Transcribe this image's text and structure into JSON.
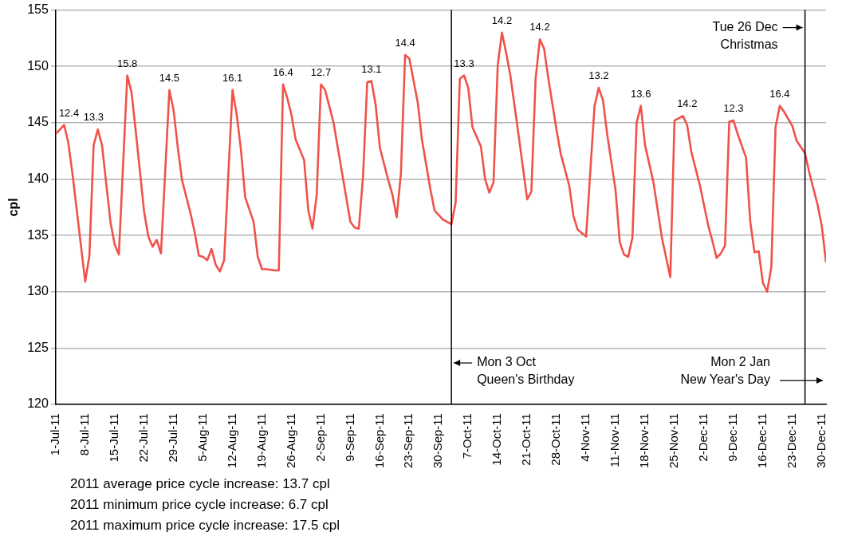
{
  "chart_data": {
    "type": "line",
    "ylabel": "cpl",
    "marker": "none",
    "line_style": "solid",
    "grid": "y",
    "legend": false,
    "x": [
      "2011-07-01",
      "2011-07-03",
      "2011-07-04",
      "2011-07-05",
      "2011-07-08",
      "2011-07-09",
      "2011-07-10",
      "2011-07-11",
      "2011-07-12",
      "2011-07-14",
      "2011-07-15",
      "2011-07-16",
      "2011-07-18",
      "2011-07-19",
      "2011-07-20",
      "2011-07-22",
      "2011-07-23",
      "2011-07-24",
      "2011-07-25",
      "2011-07-26",
      "2011-07-28",
      "2011-07-29",
      "2011-07-30",
      "2011-07-31",
      "2011-08-02",
      "2011-08-03",
      "2011-08-04",
      "2011-08-05",
      "2011-08-06",
      "2011-08-07",
      "2011-08-08",
      "2011-08-09",
      "2011-08-10",
      "2011-08-12",
      "2011-08-13",
      "2011-08-14",
      "2011-08-15",
      "2011-08-17",
      "2011-08-18",
      "2011-08-19",
      "2011-08-20",
      "2011-08-22",
      "2011-08-23",
      "2011-08-24",
      "2011-08-25",
      "2011-08-26",
      "2011-08-27",
      "2011-08-29",
      "2011-08-30",
      "2011-08-31",
      "2011-09-01",
      "2011-09-02",
      "2011-09-03",
      "2011-09-05",
      "2011-09-07",
      "2011-09-09",
      "2011-09-10",
      "2011-09-11",
      "2011-09-12",
      "2011-09-13",
      "2011-09-14",
      "2011-09-15",
      "2011-09-16",
      "2011-09-18",
      "2011-09-19",
      "2011-09-20",
      "2011-09-21",
      "2011-09-22",
      "2011-09-23",
      "2011-09-25",
      "2011-09-26",
      "2011-09-28",
      "2011-09-29",
      "2011-09-30",
      "2011-10-01",
      "2011-10-03",
      "2011-10-04",
      "2011-10-05",
      "2011-10-06",
      "2011-10-07",
      "2011-10-08",
      "2011-10-10",
      "2011-10-11",
      "2011-10-12",
      "2011-10-13",
      "2011-10-14",
      "2011-10-15",
      "2011-10-16",
      "2011-10-17",
      "2011-10-19",
      "2011-10-21",
      "2011-10-22",
      "2011-10-23",
      "2011-10-24",
      "2011-10-25",
      "2011-10-26",
      "2011-10-28",
      "2011-10-29",
      "2011-10-31",
      "2011-11-01",
      "2011-11-02",
      "2011-11-04",
      "2011-11-06",
      "2011-11-07",
      "2011-11-08",
      "2011-11-09",
      "2011-11-11",
      "2011-11-12",
      "2011-11-13",
      "2011-11-14",
      "2011-11-15",
      "2011-11-16",
      "2011-11-17",
      "2011-11-18",
      "2011-11-20",
      "2011-11-22",
      "2011-11-24",
      "2011-11-25",
      "2011-11-27",
      "2011-11-28",
      "2011-11-29",
      "2011-12-01",
      "2011-12-03",
      "2011-12-04",
      "2011-12-05",
      "2011-12-06",
      "2011-12-07",
      "2011-12-08",
      "2011-12-09",
      "2011-12-10",
      "2011-12-12",
      "2011-12-13",
      "2011-12-14",
      "2011-12-15",
      "2011-12-16",
      "2011-12-17",
      "2011-12-18",
      "2011-12-19",
      "2011-12-20",
      "2011-12-21",
      "2011-12-23",
      "2011-12-24",
      "2011-12-26",
      "2011-12-27",
      "2011-12-29",
      "2011-12-30",
      "2011-12-31"
    ],
    "series": [
      {
        "color": "#f0524a",
        "values": [
          144.0,
          144.8,
          143.2,
          140.4,
          130.9,
          133.2,
          143.0,
          144.4,
          143.0,
          136.2,
          134.2,
          133.3,
          149.2,
          147.7,
          144.3,
          137.1,
          134.9,
          134.0,
          134.6,
          133.4,
          147.9,
          146.1,
          142.8,
          139.9,
          137.0,
          135.3,
          133.2,
          133.1,
          132.8,
          133.8,
          132.4,
          131.8,
          132.8,
          147.9,
          145.7,
          142.6,
          138.4,
          136.2,
          133.1,
          132.0,
          132.0,
          131.9,
          131.9,
          148.4,
          147.2,
          145.7,
          143.5,
          141.7,
          137.2,
          135.6,
          138.6,
          148.4,
          147.9,
          145.0,
          140.6,
          136.2,
          135.7,
          135.6,
          140.2,
          148.6,
          148.7,
          146.6,
          142.8,
          139.9,
          138.6,
          136.6,
          140.5,
          151.0,
          150.7,
          146.8,
          143.5,
          139.1,
          137.2,
          136.8,
          136.4,
          136.0,
          137.9,
          148.9,
          149.2,
          148.1,
          144.6,
          142.9,
          140.0,
          138.8,
          139.7,
          150.1,
          153.0,
          151.2,
          149.2,
          143.8,
          138.2,
          138.9,
          148.9,
          152.4,
          151.6,
          149.0,
          144.3,
          142.2,
          139.4,
          136.7,
          135.5,
          134.9,
          146.5,
          148.1,
          147.0,
          144.0,
          139.0,
          134.4,
          133.3,
          133.1,
          134.8,
          145.0,
          146.5,
          143.0,
          139.7,
          134.8,
          131.3,
          145.2,
          145.6,
          144.8,
          142.4,
          139.5,
          135.9,
          134.5,
          133.0,
          133.4,
          134.1,
          145.1,
          145.2,
          144.0,
          141.9,
          136.2,
          133.5,
          133.6,
          130.8,
          130.0,
          132.2,
          144.6,
          146.5,
          146.0,
          144.7,
          143.4,
          142.3,
          140.6,
          137.7,
          135.8,
          132.6
        ]
      }
    ],
    "xlim": [
      "2011-07-01",
      "2011-12-31"
    ],
    "xticks": [
      {
        "value": "2011-07-01",
        "label": "1-Jul-11"
      },
      {
        "value": "2011-07-08",
        "label": "8-Jul-11"
      },
      {
        "value": "2011-07-15",
        "label": "15-Jul-11"
      },
      {
        "value": "2011-07-22",
        "label": "22-Jul-11"
      },
      {
        "value": "2011-07-29",
        "label": "29-Jul-11"
      },
      {
        "value": "2011-08-05",
        "label": "5-Aug-11"
      },
      {
        "value": "2011-08-12",
        "label": "12-Aug-11"
      },
      {
        "value": "2011-08-19",
        "label": "19-Aug-11"
      },
      {
        "value": "2011-08-26",
        "label": "26-Aug-11"
      },
      {
        "value": "2011-09-02",
        "label": "2-Sep-11"
      },
      {
        "value": "2011-09-09",
        "label": "9-Sep-11"
      },
      {
        "value": "2011-09-16",
        "label": "16-Sep-11"
      },
      {
        "value": "2011-09-23",
        "label": "23-Sep-11"
      },
      {
        "value": "2011-09-30",
        "label": "30-Sep-11"
      },
      {
        "value": "2011-10-07",
        "label": "7-Oct-11"
      },
      {
        "value": "2011-10-14",
        "label": "14-Oct-11"
      },
      {
        "value": "2011-10-21",
        "label": "21-Oct-11"
      },
      {
        "value": "2011-10-28",
        "label": "28-Oct-11"
      },
      {
        "value": "2011-11-04",
        "label": "4-Nov-11"
      },
      {
        "value": "2011-11-11",
        "label": "11-Nov-11"
      },
      {
        "value": "2011-11-18",
        "label": "18-Nov-11"
      },
      {
        "value": "2011-11-25",
        "label": "25-Nov-11"
      },
      {
        "value": "2011-12-02",
        "label": "2-Dec-11"
      },
      {
        "value": "2011-12-09",
        "label": "9-Dec-11"
      },
      {
        "value": "2011-12-16",
        "label": "16-Dec-11"
      },
      {
        "value": "2011-12-23",
        "label": "23-Dec-11"
      },
      {
        "value": "2011-12-30",
        "label": "30-Dec-11"
      }
    ],
    "ylim": [
      120,
      155
    ],
    "yticks": [
      120,
      125,
      130,
      135,
      140,
      145,
      150,
      155
    ],
    "ref_lines": [
      {
        "axis": "x",
        "value": "2011-10-03",
        "label": "Mon 3 Oct\nQueen's Birthday",
        "color": "#000000"
      },
      {
        "axis": "x",
        "value": "2011-12-26",
        "label": "Tue 26 Dec\nChristmas",
        "color": "#000000"
      }
    ],
    "annotations": [
      {
        "text": "12.4",
        "x": "2011-07-03",
        "y": 144.8
      },
      {
        "text": "13.3",
        "x": "2011-07-10",
        "y": 144.4
      },
      {
        "text": "15.8",
        "x": "2011-07-18",
        "y": 149.2
      },
      {
        "text": "14.5",
        "x": "2011-07-28",
        "y": 147.9
      },
      {
        "text": "16.1",
        "x": "2011-08-12",
        "y": 147.9
      },
      {
        "text": "16.4",
        "x": "2011-08-24",
        "y": 148.4
      },
      {
        "text": "12.7",
        "x": "2011-09-02",
        "y": 148.4
      },
      {
        "text": "13.1",
        "x": "2011-09-14",
        "y": 148.7
      },
      {
        "text": "14.4",
        "x": "2011-09-22",
        "y": 151.0
      },
      {
        "text": "13.3",
        "x": "2011-10-06",
        "y": 149.2
      },
      {
        "text": "14.2",
        "x": "2011-10-15",
        "y": 153.0
      },
      {
        "text": "14.2",
        "x": "2011-10-24",
        "y": 152.4
      },
      {
        "text": "13.2",
        "x": "2011-11-07",
        "y": 148.1
      },
      {
        "text": "13.6",
        "x": "2011-11-17",
        "y": 146.5
      },
      {
        "text": "14.2",
        "x": "2011-11-28",
        "y": 145.6
      },
      {
        "text": "12.3",
        "x": "2011-12-09",
        "y": 145.2
      },
      {
        "text": "16.4",
        "x": "2011-12-20",
        "y": 146.5
      },
      "Mon 2 Jan\nNew Year's Day",
      "2011 average price cycle increase: 13.7 cpl",
      "2011 minimum price cycle increase: 6.7 cpl",
      "2011 maximum price cycle increase: 17.5 cpl"
    ]
  }
}
